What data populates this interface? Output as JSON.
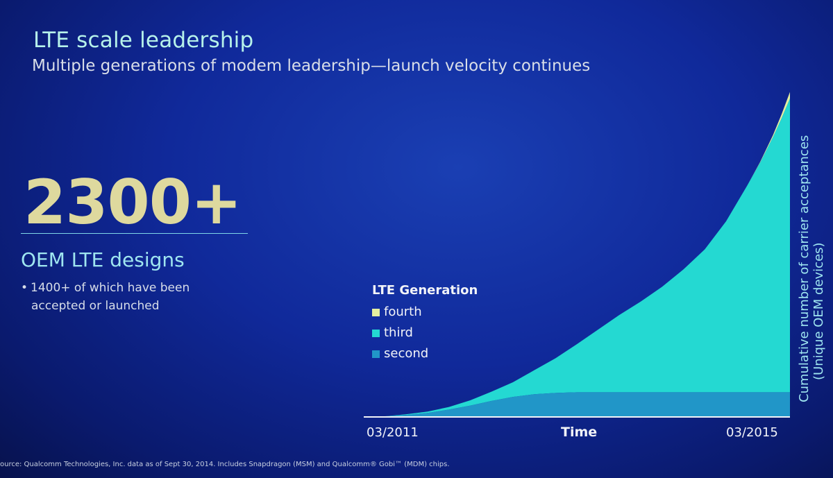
{
  "slide": {
    "title": "LTE scale leadership",
    "subtitle": "Multiple generations of modem leadership—launch velocity continues",
    "big_number": "2300+",
    "big_caption": "OEM LTE designs",
    "bullet_line1": "1400+ of which have been",
    "bullet_line2": "accepted or launched",
    "footnote": "ource: Qualcomm Technologies, Inc. data as of Sept 30, 2014. Includes Snapdragon (MSM) and Qualcomm® Gobi™ (MDM) chips."
  },
  "chart_data": {
    "type": "area",
    "title": "",
    "xlabel": "Time",
    "ylabel_line1": "Cumulative number of carrier acceptances",
    "ylabel_line2": "(Unique OEM devices)",
    "x_start_label": "03/2011",
    "x_end_label": "03/2015",
    "legend_title": "LTE Generation",
    "stacked": true,
    "x": [
      0,
      0.05,
      0.1,
      0.15,
      0.2,
      0.25,
      0.3,
      0.35,
      0.4,
      0.45,
      0.5,
      0.55,
      0.6,
      0.65,
      0.7,
      0.75,
      0.8,
      0.85,
      0.9,
      0.93,
      0.96,
      0.98,
      1.0
    ],
    "series": [
      {
        "name": "second",
        "color": "#2196c8",
        "values": [
          0,
          1,
          3,
          6,
          11,
          17,
          24,
          30,
          34,
          36,
          37,
          37,
          37,
          37,
          37,
          37,
          37,
          37,
          37,
          37,
          37,
          37,
          37
        ]
      },
      {
        "name": "third",
        "color": "#24d9d2",
        "values": [
          0,
          0,
          1,
          2,
          4,
          8,
          14,
          22,
          36,
          52,
          72,
          94,
          116,
          136,
          158,
          184,
          214,
          256,
          310,
          344,
          382,
          410,
          440
        ]
      },
      {
        "name": "fourth",
        "color": "#e4efa0",
        "values": [
          0,
          0,
          0,
          0,
          0,
          0,
          0,
          0,
          0,
          0,
          0,
          0,
          0,
          0,
          0,
          0,
          0,
          0,
          0,
          1,
          3,
          6,
          10
        ]
      }
    ],
    "legend_order": [
      "fourth",
      "third",
      "second"
    ],
    "ylim": [
      0,
      500
    ]
  }
}
